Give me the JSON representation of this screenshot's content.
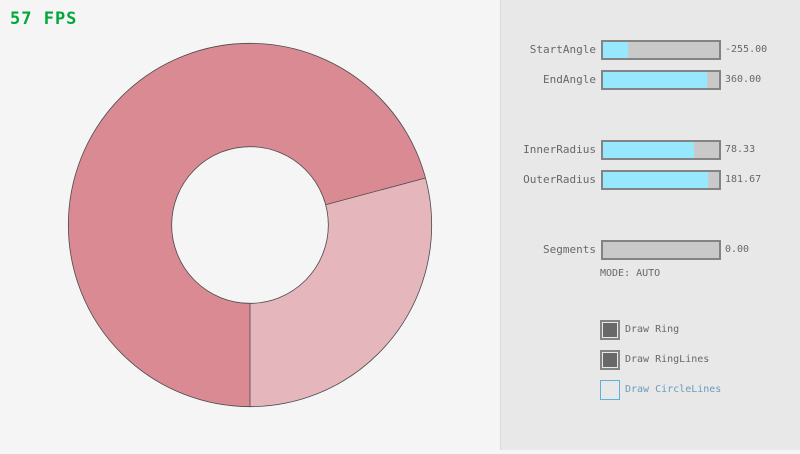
{
  "fps": "57 FPS",
  "ring": {
    "center_angle_convention": "raylib",
    "start_angle": -255,
    "end_angle": 360,
    "inner_radius": 78.33,
    "outer_radius": 181.67,
    "colors": {
      "single": "#e5b6bc",
      "double": "#da8a93",
      "lines": "#4a4a4a"
    }
  },
  "sliders": [
    {
      "label": "StartAngle",
      "value": "-255.00",
      "fraction": 0.217
    },
    {
      "label": "EndAngle",
      "value": "360.00",
      "fraction": 0.9
    },
    {
      "label": "InnerRadius",
      "value": "78.33",
      "fraction": 0.783
    },
    {
      "label": "OuterRadius",
      "value": "181.67",
      "fraction": 0.908
    },
    {
      "label": "Segments",
      "value": "0.00",
      "fraction": 0
    }
  ],
  "mode": "MODE: AUTO",
  "checkboxes": [
    {
      "label": "Draw Ring",
      "checked": true
    },
    {
      "label": "Draw RingLines",
      "checked": true
    },
    {
      "label": "Draw CircleLines",
      "checked": false
    }
  ]
}
